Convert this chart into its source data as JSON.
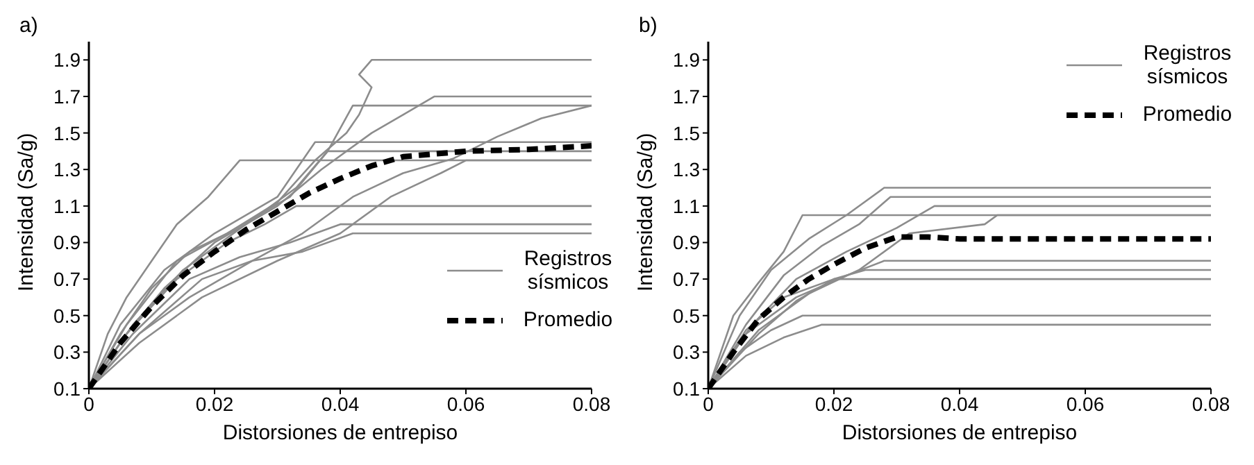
{
  "chart_data": [
    {
      "type": "line",
      "title": "a)",
      "xlabel": "Distorsiones de entrepiso",
      "ylabel": "Intensidad (Sa/g)",
      "xlim": [
        0,
        0.08
      ],
      "xticks": [
        0,
        0.02,
        0.04,
        0.06,
        0.08
      ],
      "ylim": [
        0.1,
        2.0
      ],
      "yticks": [
        0.1,
        0.3,
        0.5,
        0.7,
        0.9,
        1.1,
        1.3,
        1.5,
        1.7,
        1.9
      ],
      "grid": false,
      "legend": "right",
      "marker": "none",
      "line_style": "solid",
      "series": [
        {
          "name": "Registros sísmicos",
          "color": "#8c8c8c",
          "x": [
            0,
            0.003,
            0.006,
            0.01,
            0.014,
            0.019,
            0.024,
            0.08
          ],
          "values": [
            0.1,
            0.4,
            0.6,
            0.8,
            1.0,
            1.15,
            1.35,
            1.35
          ]
        },
        {
          "color": "#8c8c8c",
          "x": [
            0,
            0.005,
            0.01,
            0.016,
            0.022,
            0.03,
            0.036,
            0.041,
            0.043,
            0.045,
            0.043,
            0.045,
            0.08
          ],
          "values": [
            0.1,
            0.4,
            0.65,
            0.85,
            0.95,
            1.12,
            1.35,
            1.5,
            1.6,
            1.75,
            1.82,
            1.9,
            1.9
          ]
        },
        {
          "color": "#8c8c8c",
          "x": [
            0,
            0.006,
            0.012,
            0.02,
            0.03,
            0.037,
            0.045,
            0.05,
            0.055,
            0.08
          ],
          "values": [
            0.1,
            0.4,
            0.65,
            0.9,
            1.1,
            1.3,
            1.5,
            1.6,
            1.7,
            1.7
          ]
        },
        {
          "color": "#8c8c8c",
          "x": [
            0,
            0.008,
            0.016,
            0.026,
            0.034,
            0.042,
            0.05,
            0.058,
            0.065,
            0.072,
            0.08
          ],
          "values": [
            0.1,
            0.4,
            0.6,
            0.8,
            0.95,
            1.15,
            1.28,
            1.36,
            1.48,
            1.58,
            1.65
          ]
        },
        {
          "color": "#8c8c8c",
          "x": [
            0,
            0.006,
            0.014,
            0.022,
            0.032,
            0.038,
            0.042,
            0.08
          ],
          "values": [
            0.1,
            0.45,
            0.8,
            0.95,
            1.15,
            1.4,
            1.65,
            1.65
          ]
        },
        {
          "color": "#8c8c8c",
          "x": [
            0,
            0.005,
            0.012,
            0.02,
            0.03,
            0.036,
            0.08
          ],
          "values": [
            0.1,
            0.45,
            0.75,
            0.95,
            1.15,
            1.45,
            1.45
          ]
        },
        {
          "color": "#8c8c8c",
          "x": [
            0,
            0.007,
            0.015,
            0.025,
            0.033,
            0.038,
            0.08
          ],
          "values": [
            0.1,
            0.45,
            0.75,
            1.0,
            1.2,
            1.4,
            1.4
          ]
        },
        {
          "color": "#8c8c8c",
          "x": [
            0,
            0.008,
            0.018,
            0.03,
            0.04,
            0.048,
            0.056,
            0.06,
            0.08
          ],
          "values": [
            0.1,
            0.35,
            0.6,
            0.8,
            0.95,
            1.15,
            1.28,
            1.35,
            1.35
          ]
        },
        {
          "color": "#8c8c8c",
          "x": [
            0,
            0.006,
            0.014,
            0.022,
            0.028,
            0.033,
            0.08
          ],
          "values": [
            0.1,
            0.4,
            0.7,
            0.9,
            1.0,
            1.1,
            1.1
          ]
        },
        {
          "color": "#8c8c8c",
          "x": [
            0,
            0.007,
            0.016,
            0.024,
            0.032,
            0.04,
            0.08
          ],
          "values": [
            0.1,
            0.4,
            0.7,
            0.82,
            0.9,
            1.0,
            1.0
          ]
        },
        {
          "color": "#8c8c8c",
          "x": [
            0,
            0.008,
            0.018,
            0.026,
            0.034,
            0.042,
            0.08
          ],
          "values": [
            0.1,
            0.4,
            0.7,
            0.8,
            0.85,
            0.95,
            0.95
          ]
        },
        {
          "name": "Promedio",
          "color": "#000000",
          "line_style": "dashed",
          "x": [
            0,
            0.005,
            0.01,
            0.015,
            0.02,
            0.025,
            0.03,
            0.035,
            0.04,
            0.045,
            0.05,
            0.06,
            0.07,
            0.08
          ],
          "values": [
            0.1,
            0.35,
            0.55,
            0.72,
            0.85,
            0.97,
            1.07,
            1.17,
            1.25,
            1.32,
            1.37,
            1.4,
            1.41,
            1.43
          ]
        }
      ]
    },
    {
      "type": "line",
      "title": "b)",
      "xlabel": "Distorsiones de entrepiso",
      "ylabel": "Intensidad (Sa/g)",
      "xlim": [
        0,
        0.08
      ],
      "xticks": [
        0,
        0.02,
        0.04,
        0.06,
        0.08
      ],
      "ylim": [
        0.1,
        2.0
      ],
      "yticks": [
        0.1,
        0.3,
        0.5,
        0.7,
        0.9,
        1.1,
        1.3,
        1.5,
        1.7,
        1.9
      ],
      "grid": false,
      "legend": "top right",
      "marker": "none",
      "line_style": "solid",
      "series": [
        {
          "name": "Registros sísmicos",
          "color": "#8c8c8c",
          "x": [
            0,
            0.005,
            0.01,
            0.016,
            0.022,
            0.028,
            0.08
          ],
          "values": [
            0.1,
            0.5,
            0.75,
            0.92,
            1.05,
            1.2,
            1.2
          ]
        },
        {
          "color": "#8c8c8c",
          "x": [
            0,
            0.006,
            0.012,
            0.018,
            0.024,
            0.029,
            0.08
          ],
          "values": [
            0.1,
            0.45,
            0.72,
            0.88,
            1.0,
            1.15,
            1.15
          ]
        },
        {
          "color": "#8c8c8c",
          "x": [
            0,
            0.007,
            0.014,
            0.022,
            0.03,
            0.036,
            0.08
          ],
          "values": [
            0.1,
            0.45,
            0.7,
            0.85,
            0.98,
            1.1,
            1.1
          ]
        },
        {
          "color": "#8c8c8c",
          "x": [
            0,
            0.004,
            0.008,
            0.012,
            0.015,
            0.08
          ],
          "values": [
            0.1,
            0.5,
            0.68,
            0.85,
            1.05,
            1.05
          ]
        },
        {
          "color": "#8c8c8c",
          "x": [
            0,
            0.008,
            0.016,
            0.024,
            0.032,
            0.044,
            0.046,
            0.08
          ],
          "values": [
            0.1,
            0.42,
            0.62,
            0.75,
            0.95,
            1.0,
            1.05,
            1.05
          ]
        },
        {
          "color": "#8c8c8c",
          "x": [
            0,
            0.006,
            0.014,
            0.022,
            0.028,
            0.08
          ],
          "values": [
            0.1,
            0.4,
            0.6,
            0.72,
            0.8,
            0.8
          ]
        },
        {
          "color": "#8c8c8c",
          "x": [
            0,
            0.006,
            0.012,
            0.02,
            0.025,
            0.08
          ],
          "values": [
            0.1,
            0.42,
            0.6,
            0.7,
            0.75,
            0.75
          ]
        },
        {
          "color": "#8c8c8c",
          "x": [
            0,
            0.008,
            0.014,
            0.02,
            0.08
          ],
          "values": [
            0.1,
            0.4,
            0.58,
            0.7,
            0.7
          ]
        },
        {
          "color": "#8c8c8c",
          "x": [
            0,
            0.005,
            0.01,
            0.015,
            0.08
          ],
          "values": [
            0.1,
            0.3,
            0.42,
            0.5,
            0.5
          ]
        },
        {
          "color": "#8c8c8c",
          "x": [
            0,
            0.006,
            0.012,
            0.018,
            0.08
          ],
          "values": [
            0.1,
            0.28,
            0.38,
            0.45,
            0.45
          ]
        },
        {
          "name": "Promedio",
          "color": "#000000",
          "line_style": "dashed",
          "x": [
            0,
            0.004,
            0.008,
            0.012,
            0.016,
            0.02,
            0.025,
            0.03,
            0.035,
            0.04,
            0.08
          ],
          "values": [
            0.1,
            0.3,
            0.48,
            0.6,
            0.7,
            0.78,
            0.87,
            0.93,
            0.93,
            0.92,
            0.92
          ]
        }
      ]
    }
  ]
}
